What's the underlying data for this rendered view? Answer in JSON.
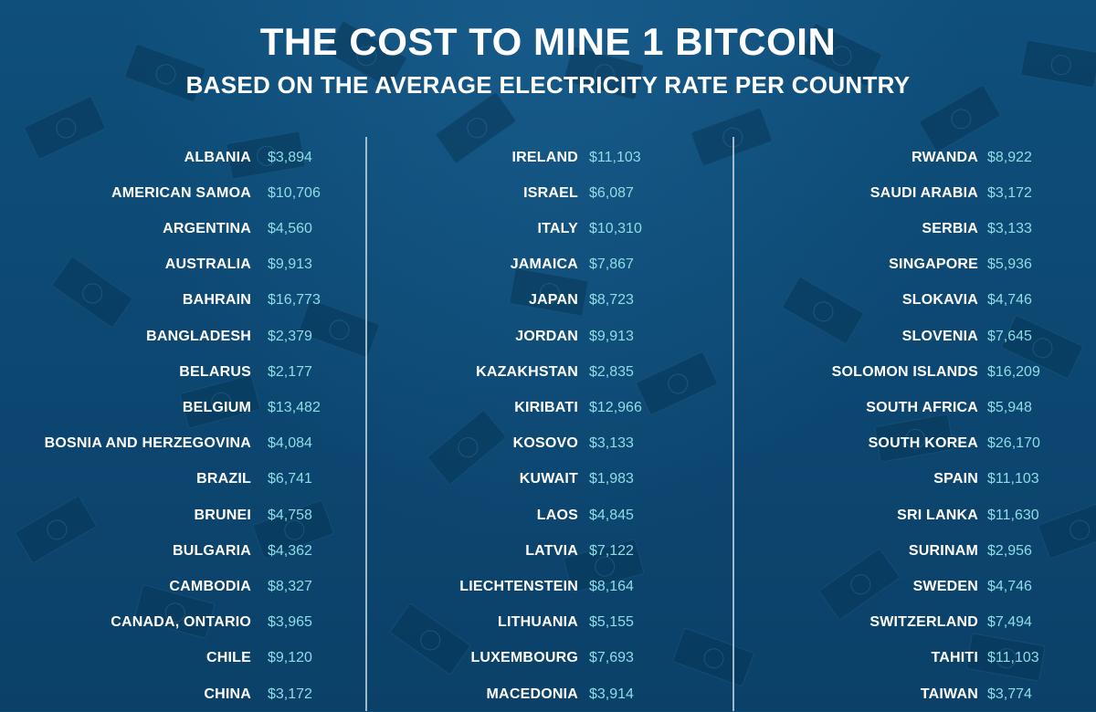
{
  "title": "THE COST TO MINE 1 BITCOIN",
  "subtitle": "BASED ON THE AVERAGE ELECTRICITY RATE PER COUNTRY",
  "colors": {
    "background": "#0e4a74",
    "country_text": "#ffffff",
    "cost_text": "#8fdde6",
    "divider": "#d2e1eb"
  },
  "chart_data": {
    "type": "table",
    "title": "THE COST TO MINE 1 BITCOIN",
    "subtitle": "BASED ON THE AVERAGE ELECTRICITY RATE PER COUNTRY",
    "columns": [
      [
        {
          "country": "ALBANIA",
          "cost": "$3,894"
        },
        {
          "country": "AMERICAN SAMOA",
          "cost": "$10,706"
        },
        {
          "country": "ARGENTINA",
          "cost": "$4,560"
        },
        {
          "country": "AUSTRALIA",
          "cost": "$9,913"
        },
        {
          "country": "BAHRAIN",
          "cost": "$16,773"
        },
        {
          "country": "BANGLADESH",
          "cost": "$2,379"
        },
        {
          "country": "BELARUS",
          "cost": "$2,177"
        },
        {
          "country": "BELGIUM",
          "cost": "$13,482"
        },
        {
          "country": "BOSNIA AND HERZEGOVINA",
          "cost": "$4,084"
        },
        {
          "country": "BRAZIL",
          "cost": "$6,741"
        },
        {
          "country": "BRUNEI",
          "cost": "$4,758"
        },
        {
          "country": "BULGARIA",
          "cost": "$4,362"
        },
        {
          "country": "CAMBODIA",
          "cost": "$8,327"
        },
        {
          "country": "CANADA, ONTARIO",
          "cost": "$3,965"
        },
        {
          "country": "CHILE",
          "cost": "$9,120"
        },
        {
          "country": "CHINA",
          "cost": "$3,172"
        }
      ],
      [
        {
          "country": "IRELAND",
          "cost": "$11,103"
        },
        {
          "country": "ISRAEL",
          "cost": "$6,087"
        },
        {
          "country": "ITALY",
          "cost": "$10,310"
        },
        {
          "country": "JAMAICA",
          "cost": "$7,867"
        },
        {
          "country": "JAPAN",
          "cost": "$8,723"
        },
        {
          "country": "JORDAN",
          "cost": "$9,913"
        },
        {
          "country": "KAZAKHSTAN",
          "cost": "$2,835"
        },
        {
          "country": "KIRIBATI",
          "cost": "$12,966"
        },
        {
          "country": "KOSOVO",
          "cost": "$3,133"
        },
        {
          "country": "KUWAIT",
          "cost": "$1,983"
        },
        {
          "country": "LAOS",
          "cost": "$4,845"
        },
        {
          "country": "LATVIA",
          "cost": "$7,122"
        },
        {
          "country": "LIECHTENSTEIN",
          "cost": "$8,164"
        },
        {
          "country": "LITHUANIA",
          "cost": "$5,155"
        },
        {
          "country": "LUXEMBOURG",
          "cost": "$7,693"
        },
        {
          "country": "MACEDONIA",
          "cost": "$3,914"
        }
      ],
      [
        {
          "country": "RWANDA",
          "cost": "$8,922"
        },
        {
          "country": "SAUDI ARABIA",
          "cost": "$3,172"
        },
        {
          "country": "SERBIA",
          "cost": "$3,133"
        },
        {
          "country": "SINGAPORE",
          "cost": "$5,936"
        },
        {
          "country": "SLOKAVIA",
          "cost": "$4,746"
        },
        {
          "country": "SLOVENIA",
          "cost": "$7,645"
        },
        {
          "country": "SOLOMON ISLANDS",
          "cost": "$16,209"
        },
        {
          "country": "SOUTH AFRICA",
          "cost": "$5,948"
        },
        {
          "country": "SOUTH KOREA",
          "cost": "$26,170"
        },
        {
          "country": "SPAIN",
          "cost": "$11,103"
        },
        {
          "country": "SRI LANKA",
          "cost": "$11,630"
        },
        {
          "country": "SURINAM",
          "cost": "$2,956"
        },
        {
          "country": "SWEDEN",
          "cost": "$4,746"
        },
        {
          "country": "SWITZERLAND",
          "cost": "$7,494"
        },
        {
          "country": "TAHITI",
          "cost": "$11,103"
        },
        {
          "country": "TAIWAN",
          "cost": "$3,774"
        }
      ]
    ]
  }
}
